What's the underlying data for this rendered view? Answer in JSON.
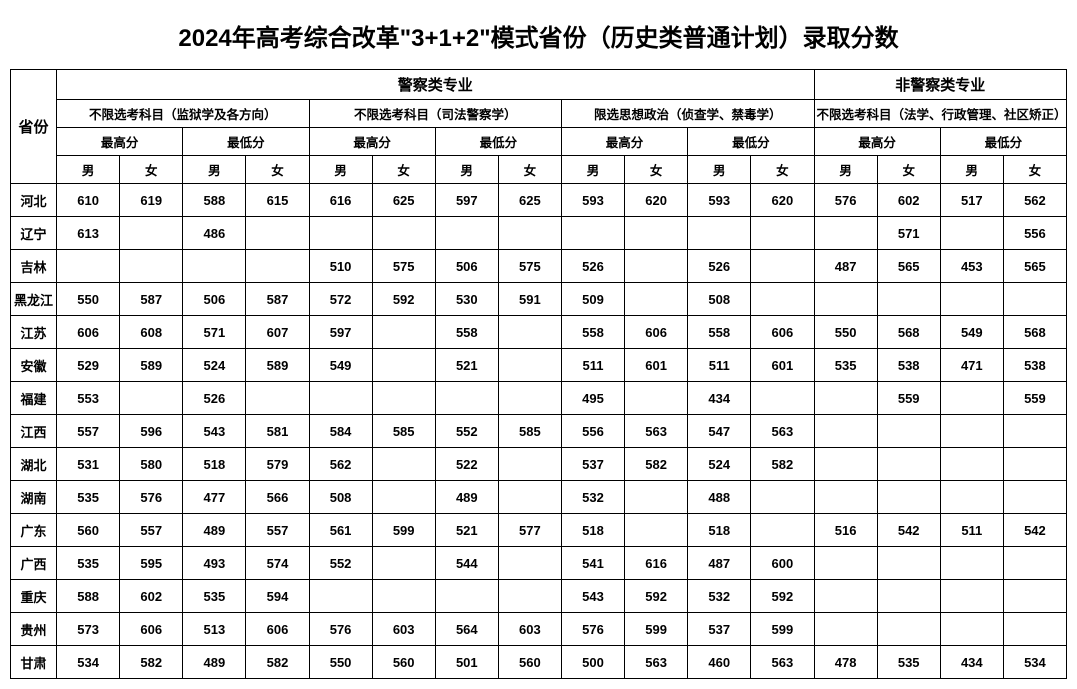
{
  "title": "2024年高考综合改革\"3+1+2\"模式省份（历史类普通计划）录取分数",
  "colors": {
    "bg": "#ffffff",
    "border": "#000000",
    "text": "#000000"
  },
  "header": {
    "province": "省份",
    "group1": "警察类专业",
    "group2": "非警察类专业",
    "sub1": "不限选考科目（监狱学及各方向）",
    "sub2": "不限选考科目（司法警察学）",
    "sub3": "限选思想政治（侦查学、禁毒学）",
    "sub4": "不限选考科目（法学、行政管理、社区矫正）",
    "max": "最高分",
    "min": "最低分",
    "male": "男",
    "female": "女"
  },
  "rows": [
    {
      "prov": "河北",
      "c": [
        "610",
        "619",
        "588",
        "615",
        "616",
        "625",
        "597",
        "625",
        "593",
        "620",
        "593",
        "620",
        "576",
        "602",
        "517",
        "562"
      ]
    },
    {
      "prov": "辽宁",
      "c": [
        "613",
        "",
        "486",
        "",
        "",
        "",
        "",
        "",
        "",
        "",
        "",
        "",
        "",
        "571",
        "",
        "556"
      ]
    },
    {
      "prov": "吉林",
      "c": [
        "",
        "",
        "",
        "",
        "510",
        "575",
        "506",
        "575",
        "526",
        "",
        "526",
        "",
        "487",
        "565",
        "453",
        "565"
      ]
    },
    {
      "prov": "黑龙江",
      "c": [
        "550",
        "587",
        "506",
        "587",
        "572",
        "592",
        "530",
        "591",
        "509",
        "",
        "508",
        "",
        "",
        "",
        "",
        ""
      ]
    },
    {
      "prov": "江苏",
      "c": [
        "606",
        "608",
        "571",
        "607",
        "597",
        "",
        "558",
        "",
        "558",
        "606",
        "558",
        "606",
        "550",
        "568",
        "549",
        "568"
      ]
    },
    {
      "prov": "安徽",
      "c": [
        "529",
        "589",
        "524",
        "589",
        "549",
        "",
        "521",
        "",
        "511",
        "601",
        "511",
        "601",
        "535",
        "538",
        "471",
        "538"
      ]
    },
    {
      "prov": "福建",
      "c": [
        "553",
        "",
        "526",
        "",
        "",
        "",
        "",
        "",
        "495",
        "",
        "434",
        "",
        "",
        "559",
        "",
        "559"
      ]
    },
    {
      "prov": "江西",
      "c": [
        "557",
        "596",
        "543",
        "581",
        "584",
        "585",
        "552",
        "585",
        "556",
        "563",
        "547",
        "563",
        "",
        "",
        "",
        ""
      ]
    },
    {
      "prov": "湖北",
      "c": [
        "531",
        "580",
        "518",
        "579",
        "562",
        "",
        "522",
        "",
        "537",
        "582",
        "524",
        "582",
        "",
        "",
        "",
        ""
      ]
    },
    {
      "prov": "湖南",
      "c": [
        "535",
        "576",
        "477",
        "566",
        "508",
        "",
        "489",
        "",
        "532",
        "",
        "488",
        "",
        "",
        "",
        "",
        ""
      ]
    },
    {
      "prov": "广东",
      "c": [
        "560",
        "557",
        "489",
        "557",
        "561",
        "599",
        "521",
        "577",
        "518",
        "",
        "518",
        "",
        "516",
        "542",
        "511",
        "542"
      ]
    },
    {
      "prov": "广西",
      "c": [
        "535",
        "595",
        "493",
        "574",
        "552",
        "",
        "544",
        "",
        "541",
        "616",
        "487",
        "600",
        "",
        "",
        "",
        ""
      ]
    },
    {
      "prov": "重庆",
      "c": [
        "588",
        "602",
        "535",
        "594",
        "",
        "",
        "",
        "",
        "543",
        "592",
        "532",
        "592",
        "",
        "",
        "",
        ""
      ]
    },
    {
      "prov": "贵州",
      "c": [
        "573",
        "606",
        "513",
        "606",
        "576",
        "603",
        "564",
        "603",
        "576",
        "599",
        "537",
        "599",
        "",
        "",
        "",
        ""
      ]
    },
    {
      "prov": "甘肃",
      "c": [
        "534",
        "582",
        "489",
        "582",
        "550",
        "560",
        "501",
        "560",
        "500",
        "563",
        "460",
        "563",
        "478",
        "535",
        "434",
        "534"
      ]
    }
  ]
}
